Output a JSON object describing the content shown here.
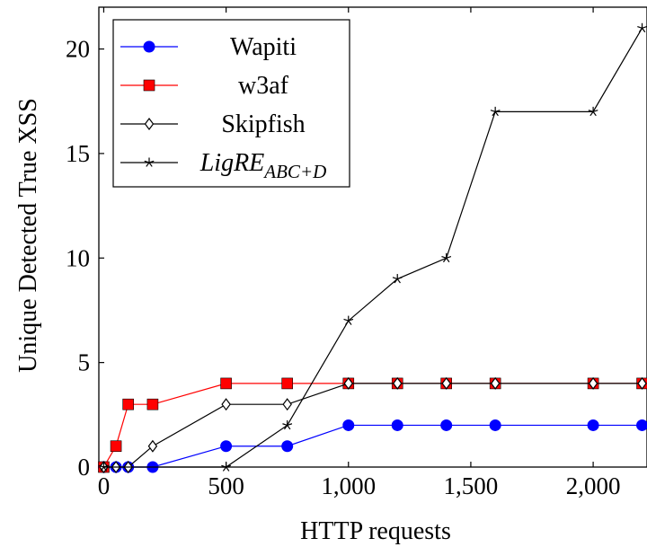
{
  "chart_data": {
    "type": "line",
    "xlabel": "HTTP requests",
    "ylabel": "Unique Detected True XSS",
    "xlim": [
      -20,
      2220
    ],
    "ylim": [
      0,
      22
    ],
    "x_ticks": [
      0,
      500,
      1000,
      1500,
      2000
    ],
    "x_tick_labels": [
      "0",
      "500",
      "1,000",
      "1,500",
      "2,000"
    ],
    "y_ticks": [
      0,
      5,
      10,
      15,
      20
    ],
    "y_tick_labels": [
      "0",
      "5",
      "10",
      "15",
      "20"
    ],
    "grid": false,
    "legend_position": "top-left",
    "series": [
      {
        "name": "Wapiti",
        "color": "#0000ff",
        "marker": "circle",
        "x": [
          0,
          50,
          100,
          200,
          500,
          750,
          1000,
          1200,
          1400,
          1600,
          2000,
          2200
        ],
        "y": [
          0,
          0,
          0,
          0,
          1,
          1,
          2,
          2,
          2,
          2,
          2,
          2
        ]
      },
      {
        "name": "w3af",
        "color": "#ff0000",
        "marker": "square",
        "x": [
          0,
          50,
          100,
          200,
          500,
          750,
          1000,
          1200,
          1400,
          1600,
          2000,
          2200
        ],
        "y": [
          0,
          1,
          3,
          3,
          4,
          4,
          4,
          4,
          4,
          4,
          4,
          4
        ]
      },
      {
        "name": "Skipfish",
        "color": "#000000",
        "marker": "diamond",
        "x": [
          0,
          50,
          100,
          200,
          500,
          750,
          1000,
          1200,
          1400,
          1600,
          2000,
          2200
        ],
        "y": [
          0,
          0,
          0,
          1,
          3,
          3,
          4,
          4,
          4,
          4,
          4,
          4
        ]
      },
      {
        "name": "LigRE",
        "name_subscript": "ABC+D",
        "color": "#000000",
        "marker": "star",
        "x": [
          0,
          500,
          750,
          1000,
          1200,
          1400,
          1600,
          2000,
          2200
        ],
        "y": [
          0,
          0,
          2,
          7,
          9,
          10,
          17,
          17,
          21
        ]
      }
    ]
  }
}
